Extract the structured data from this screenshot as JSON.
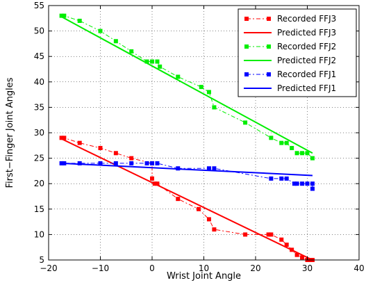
{
  "chart_data": {
    "type": "line",
    "title": "",
    "xlabel": "Wrist Joint Angle",
    "ylabel": "First−Finger Joint Angles",
    "xlim": [
      -20,
      40
    ],
    "ylim": [
      5,
      55
    ],
    "xticks": [
      "−20",
      "−10",
      "0",
      "10",
      "20",
      "30",
      "40"
    ],
    "yticks": [
      "5",
      "10",
      "15",
      "20",
      "25",
      "30",
      "35",
      "40",
      "45",
      "50",
      "55"
    ],
    "grid": true,
    "legend_position": "top-right",
    "series": [
      {
        "name": "Recorded FFJ3",
        "color": "#ff0000",
        "style": "dash-dot-marker",
        "x": [
          -17.5,
          -17,
          -14,
          -10,
          -7,
          -4,
          0,
          0,
          0.5,
          1,
          5,
          9,
          11,
          12,
          18,
          22.5,
          23,
          25,
          26,
          27,
          28,
          29,
          30,
          30.5,
          31
        ],
        "y": [
          29,
          29,
          28,
          27,
          26,
          25,
          24,
          21,
          20,
          20,
          17,
          15,
          13,
          11,
          10,
          10,
          10,
          9,
          8,
          7,
          6,
          5.5,
          5,
          5,
          5
        ]
      },
      {
        "name": "Predicted FFJ3",
        "color": "#ff0000",
        "style": "solid",
        "x": [
          -17.5,
          31
        ],
        "y": [
          28.8,
          5
        ]
      },
      {
        "name": "Recorded FFJ2",
        "color": "#00ee00",
        "style": "dash-dot-marker",
        "x": [
          -17.5,
          -17,
          -14,
          -10,
          -7,
          -4,
          -1,
          0,
          1,
          1.5,
          5,
          9.5,
          11,
          12,
          18,
          23,
          25,
          26,
          27,
          28,
          29,
          30,
          31
        ],
        "y": [
          53,
          53,
          52,
          50,
          48,
          46,
          44,
          44,
          44,
          43,
          41,
          39,
          38,
          35,
          32,
          29,
          28,
          28,
          27,
          26,
          26,
          26,
          25
        ]
      },
      {
        "name": "Predicted FFJ2",
        "color": "#00ee00",
        "style": "solid",
        "x": [
          -17.5,
          31
        ],
        "y": [
          52.8,
          26
        ]
      },
      {
        "name": "Recorded FFJ1",
        "color": "#0000ff",
        "style": "dash-dot-marker",
        "x": [
          -17.5,
          -17,
          -14,
          -10,
          -7,
          -4,
          -1,
          0,
          1,
          5,
          11,
          12,
          23,
          25,
          26,
          27.5,
          28,
          29,
          30,
          31,
          31
        ],
        "y": [
          24,
          24,
          24,
          24,
          24,
          24,
          24,
          24,
          24,
          23,
          23,
          23,
          21,
          21,
          21,
          20,
          20,
          20,
          20,
          20,
          19
        ]
      },
      {
        "name": "Predicted FFJ1",
        "color": "#0000ff",
        "style": "solid",
        "x": [
          -17.5,
          31
        ],
        "y": [
          24,
          21.6
        ]
      }
    ]
  }
}
